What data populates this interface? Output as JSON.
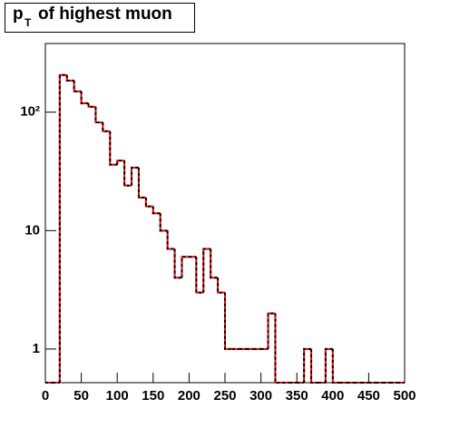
{
  "chart_data": {
    "type": "histogram",
    "title": {
      "main": "p",
      "sub": "T",
      "rest": "of highest muon"
    },
    "bins": [
      0,
      10,
      20,
      30,
      40,
      50,
      60,
      70,
      80,
      90,
      100,
      110,
      120,
      130,
      140,
      150,
      160,
      170,
      180,
      190,
      200,
      210,
      220,
      230,
      240,
      250,
      260,
      270,
      280,
      290,
      300,
      310,
      320,
      330,
      340,
      350,
      360,
      370,
      380,
      390,
      400,
      410,
      420,
      430,
      440,
      450,
      460,
      470,
      480,
      490,
      500
    ],
    "series": [
      {
        "color": "#ff0000",
        "dash_color": "#000000",
        "values": [
          0,
          0,
          206,
          185,
          150,
          119,
          111,
          82,
          69,
          36,
          39,
          24,
          34,
          19,
          16,
          14,
          10,
          7,
          4,
          6,
          6,
          3,
          7,
          4,
          3,
          1,
          1,
          1,
          1,
          1,
          1,
          2,
          0,
          0,
          0,
          0,
          1,
          0,
          0,
          1,
          0,
          0,
          0,
          0,
          0,
          0,
          0,
          0,
          0,
          0
        ]
      }
    ],
    "xlim": [
      0,
      500
    ],
    "xticks": [
      0,
      50,
      100,
      150,
      200,
      250,
      300,
      350,
      400,
      450,
      500
    ],
    "ylim": [
      0.52,
      380
    ],
    "log_y": true,
    "yticks": [
      1,
      10,
      {
        "value": 100,
        "label": "10²"
      }
    ]
  }
}
